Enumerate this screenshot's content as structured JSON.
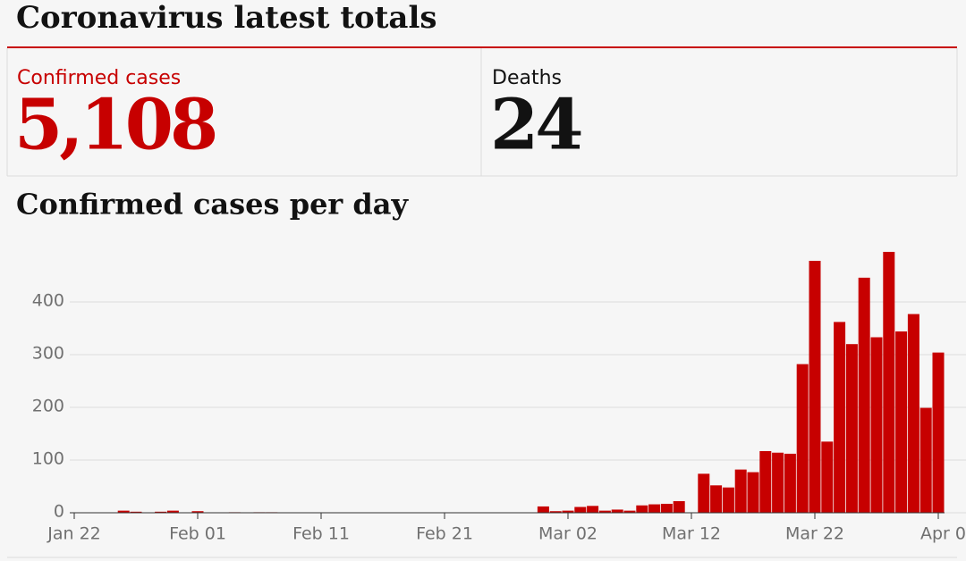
{
  "header": {
    "title": "Coronavirus latest totals"
  },
  "stats": [
    {
      "label": "Confirmed cases",
      "value": "5,108"
    },
    {
      "label": "Deaths",
      "value": "24"
    }
  ],
  "chart_data": {
    "type": "bar",
    "title": "Confirmed cases per day",
    "categories": [
      "Jan 22",
      null,
      null,
      null,
      null,
      null,
      null,
      null,
      null,
      null,
      "Feb 01",
      null,
      null,
      null,
      null,
      null,
      null,
      null,
      null,
      null,
      "Feb 11",
      null,
      null,
      null,
      null,
      null,
      null,
      null,
      null,
      null,
      "Feb 21",
      null,
      null,
      null,
      null,
      null,
      null,
      null,
      null,
      null,
      "Mar 02",
      null,
      null,
      null,
      null,
      null,
      null,
      null,
      null,
      null,
      "Mar 12",
      null,
      null,
      null,
      null,
      null,
      null,
      null,
      null,
      null,
      "Mar 22",
      null,
      null,
      null,
      null,
      null,
      null,
      null,
      null,
      null,
      "Apr 0"
    ],
    "values": [
      0,
      0,
      0,
      0,
      4,
      2,
      0,
      2,
      4,
      0,
      3,
      0,
      0,
      1,
      0,
      1,
      1,
      0,
      0,
      0,
      0,
      0,
      0,
      0,
      0,
      0,
      0,
      0,
      0,
      0,
      0,
      0,
      0,
      0,
      0,
      0,
      0,
      0,
      12,
      3,
      4,
      11,
      13,
      4,
      6,
      4,
      14,
      16,
      17,
      22,
      0,
      74,
      52,
      48,
      82,
      77,
      117,
      114,
      112,
      282,
      478,
      135,
      362,
      320,
      446,
      333,
      495,
      344,
      377,
      199,
      304
    ],
    "color": "#c70000",
    "ylim": [
      0,
      500
    ],
    "yticks": [
      0,
      100,
      200,
      300,
      400
    ],
    "grid": true
  }
}
